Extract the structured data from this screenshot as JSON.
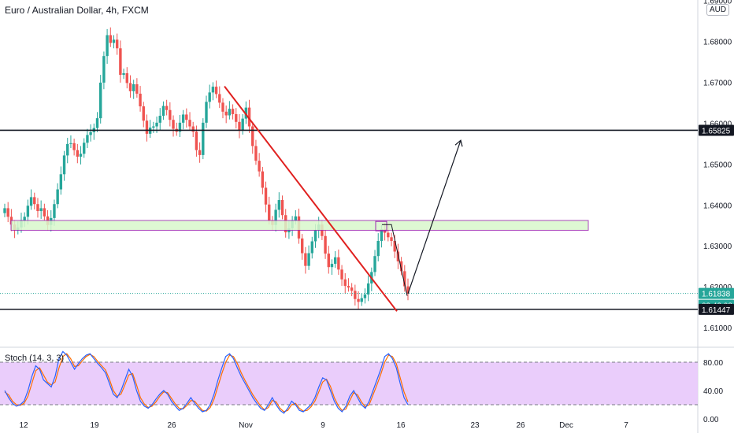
{
  "symbol_title": "Euro / Australian Dollar, 4h, FXCM",
  "currency_badge": "AUD",
  "stoch_title": "Stoch (14, 3, 3)",
  "colors": {
    "up": "#26a69a",
    "down": "#ef5350",
    "trendline": "#e0201f",
    "level_line": "#131722",
    "zone_fill": "#d9f7cc",
    "zone_border": "#9c27b0",
    "stoch_k": "#2962ff",
    "stoch_d": "#ff6d00",
    "stoch_band": "#e8c8fb",
    "price_badge": "#26a69a"
  },
  "price_badges": [
    {
      "label": "1.65825",
      "style": "dark"
    },
    {
      "label": "1.61838",
      "style": "green"
    },
    {
      "label": "03:42:08",
      "style": "green"
    },
    {
      "label": "1.61447",
      "style": "dark"
    }
  ],
  "chart_data": {
    "type": "candlestick",
    "title": "Euro / Australian Dollar, 4h, FXCM",
    "x_ticks": [
      "12",
      "19",
      "26",
      "Nov",
      "9",
      "16",
      "23",
      "26",
      "Dec",
      "7"
    ],
    "y_ticks": [
      "1.69000",
      "1.68000",
      "1.67000",
      "1.66000",
      "1.65000",
      "1.64000",
      "1.63000",
      "1.62000",
      "1.61000"
    ],
    "ylim": [
      1.6054,
      1.6901
    ],
    "price_series_close": [
      1.6392,
      1.6371,
      1.6352,
      1.6338,
      1.6345,
      1.6362,
      1.6371,
      1.6398,
      1.6419,
      1.6402,
      1.6385,
      1.6392,
      1.6372,
      1.6351,
      1.6368,
      1.6402,
      1.6438,
      1.6475,
      1.6521,
      1.6549,
      1.6551,
      1.6534,
      1.6518,
      1.6525,
      1.6552,
      1.6571,
      1.6578,
      1.6588,
      1.6612,
      1.6699,
      1.6764,
      1.6815,
      1.6796,
      1.6804,
      1.6783,
      1.6718,
      1.6722,
      1.6698,
      1.6678,
      1.6695,
      1.6672,
      1.6641,
      1.6606,
      1.6574,
      1.6589,
      1.6592,
      1.6601,
      1.6618,
      1.6642,
      1.6632,
      1.6608,
      1.6586,
      1.6579,
      1.6601,
      1.6621,
      1.6608,
      1.6592,
      1.6579,
      1.6534,
      1.6522,
      1.6601,
      1.6652,
      1.6675,
      1.6689,
      1.6671,
      1.665,
      1.6628,
      1.6619,
      1.6635,
      1.6622,
      1.6603,
      1.6582,
      1.6611,
      1.6638,
      1.6592,
      1.6544,
      1.6508,
      1.6482,
      1.6442,
      1.6401,
      1.6362,
      1.6351,
      1.6388,
      1.6412,
      1.6375,
      1.6333,
      1.6343,
      1.6362,
      1.6372,
      1.6318,
      1.6282,
      1.6251,
      1.6282,
      1.6311,
      1.6338,
      1.6352,
      1.6324,
      1.6281,
      1.6248,
      1.6256,
      1.6272,
      1.6242,
      1.6218,
      1.6202,
      1.6198,
      1.619,
      1.617,
      1.6163,
      1.6172,
      1.6181,
      1.6208,
      1.6236,
      1.6275,
      1.6312,
      1.6341,
      1.6332,
      1.6321,
      1.6312,
      1.6286,
      1.6262,
      1.6238,
      1.6201,
      1.6183
    ],
    "horizontal_levels": [
      {
        "label": "1.65825",
        "value": 1.65825
      },
      {
        "label": "1.61447",
        "value": 1.61447
      }
    ],
    "current_price": {
      "label": "1.61838",
      "value": 1.61838,
      "countdown": "03:42:08"
    },
    "zone": {
      "from": 1.6338,
      "to": 1.6362
    },
    "trendline": {
      "from": {
        "x_tick": "Nov",
        "price": 1.669
      },
      "to": {
        "x_tick": "16",
        "price": 1.614
      }
    },
    "projection_arrow": {
      "from_price": 1.6183,
      "to_price": 1.6558
    },
    "indicator": {
      "name": "Stoch (14, 3, 3)",
      "y_ticks": [
        "80.00",
        "40.00",
        "0.00"
      ],
      "ylim": [
        0,
        100
      ],
      "band": [
        20,
        80
      ],
      "k": [
        40,
        30,
        22,
        18,
        20,
        25,
        40,
        60,
        75,
        70,
        55,
        50,
        45,
        60,
        85,
        95,
        90,
        80,
        70,
        78,
        85,
        90,
        92,
        85,
        78,
        72,
        65,
        50,
        35,
        30,
        40,
        55,
        70,
        60,
        40,
        25,
        18,
        15,
        20,
        28,
        35,
        40,
        35,
        25,
        18,
        12,
        15,
        22,
        30,
        22,
        15,
        10,
        12,
        20,
        35,
        55,
        72,
        88,
        92,
        85,
        72,
        60,
        50,
        40,
        30,
        22,
        15,
        12,
        20,
        30,
        20,
        12,
        8,
        15,
        25,
        20,
        12,
        10,
        15,
        20,
        30,
        45,
        58,
        55,
        40,
        25,
        15,
        10,
        18,
        32,
        40,
        30,
        20,
        15,
        25,
        40,
        55,
        70,
        88,
        92,
        85,
        72,
        50,
        30,
        20
      ],
      "d": [
        38,
        34,
        25,
        20,
        19,
        22,
        32,
        50,
        68,
        72,
        62,
        52,
        48,
        52,
        72,
        88,
        92,
        85,
        74,
        75,
        82,
        88,
        91,
        88,
        81,
        75,
        69,
        56,
        40,
        32,
        35,
        48,
        62,
        64,
        48,
        30,
        21,
        16,
        18,
        24,
        32,
        38,
        37,
        29,
        21,
        15,
        14,
        19,
        26,
        25,
        18,
        12,
        11,
        16,
        28,
        46,
        64,
        80,
        90,
        88,
        78,
        65,
        54,
        44,
        34,
        26,
        18,
        13,
        16,
        26,
        24,
        15,
        10,
        12,
        20,
        22,
        15,
        11,
        12,
        17,
        25,
        38,
        52,
        56,
        46,
        30,
        19,
        12,
        14,
        26,
        37,
        34,
        24,
        17,
        20,
        34,
        48,
        63,
        80,
        90,
        88,
        78,
        58,
        38,
        24
      ]
    }
  }
}
